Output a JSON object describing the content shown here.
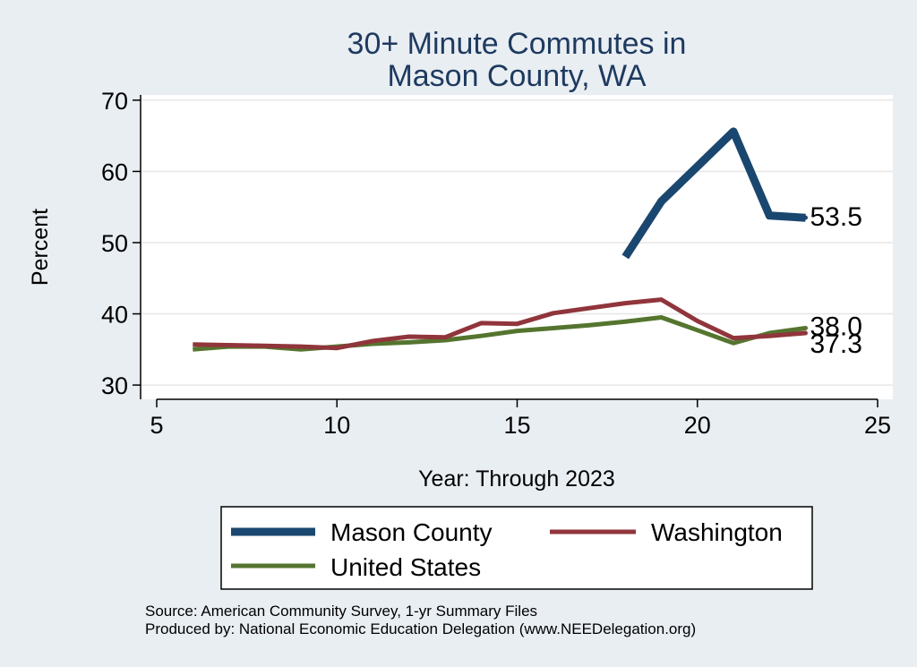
{
  "chart_data": {
    "type": "line",
    "title_lines": [
      "30+ Minute Commutes in",
      "Mason County, WA"
    ],
    "xlabel": "Year: Through 2023",
    "ylabel": "Percent",
    "xlim": [
      5,
      25
    ],
    "ylim": [
      28,
      72
    ],
    "xticks": [
      5,
      10,
      15,
      20,
      25
    ],
    "yticks": [
      30,
      40,
      50,
      60,
      70
    ],
    "grid": true,
    "legend_placement": "bottom",
    "series": [
      {
        "name": "Mason County",
        "color": "#1a476f",
        "x": [
          18,
          19,
          20,
          21,
          22,
          23
        ],
        "y": [
          48.0,
          55.8,
          60.7,
          65.6,
          53.8,
          53.5
        ],
        "end_label": "53.5"
      },
      {
        "name": "Washington",
        "color": "#90353b",
        "x": [
          6,
          7,
          8,
          9,
          10,
          11,
          12,
          13,
          14,
          15,
          16,
          17,
          18,
          19,
          20,
          21,
          22,
          23
        ],
        "y": [
          35.7,
          35.6,
          35.5,
          35.4,
          35.2,
          36.2,
          36.8,
          36.7,
          38.7,
          38.6,
          40.1,
          40.8,
          41.5,
          42.0,
          39.0,
          36.6,
          36.9,
          37.3
        ],
        "end_label": "37.3"
      },
      {
        "name": "United States",
        "color": "#55752f",
        "x": [
          6,
          7,
          8,
          9,
          10,
          11,
          12,
          13,
          14,
          15,
          16,
          17,
          18,
          19,
          20,
          21,
          22,
          23
        ],
        "y": [
          35.0,
          35.4,
          35.4,
          35.0,
          35.4,
          35.8,
          36.0,
          36.3,
          36.9,
          37.6,
          38.0,
          38.4,
          38.9,
          39.5,
          37.7,
          35.9,
          37.3,
          38.0
        ],
        "end_label": "38.0"
      }
    ]
  },
  "notes": [
    "Source: American Community Survey, 1-yr Summary Files",
    "Produced by: National Economic Education Delegation (www.NEEDelegation.org)"
  ]
}
